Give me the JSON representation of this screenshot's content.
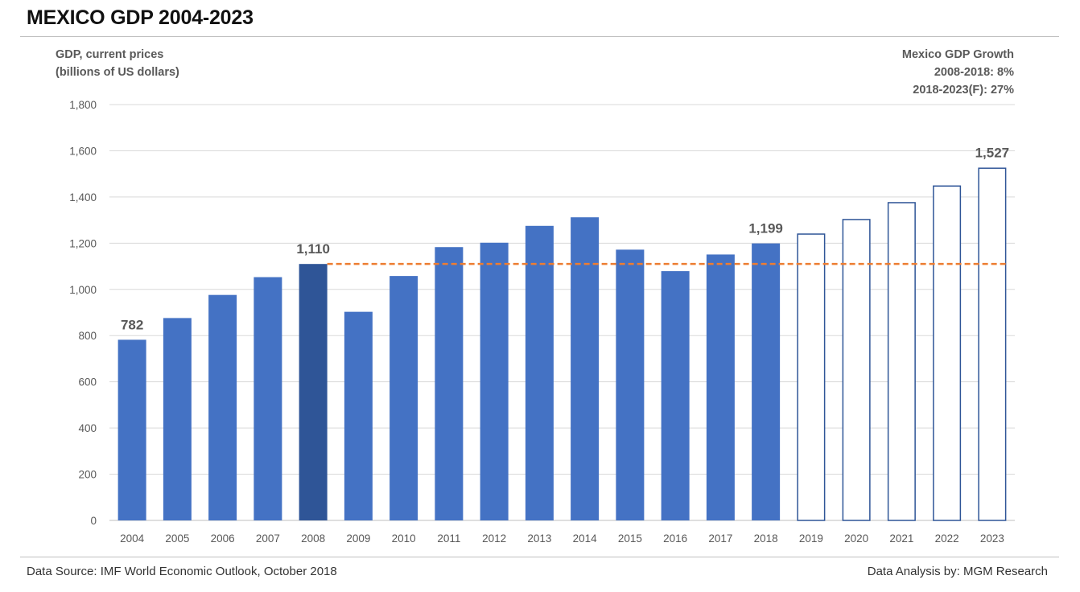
{
  "title": "MEXICO GDP 2004-2023",
  "ylabel_lines": [
    "GDP, current prices",
    "(billions of US dollars)"
  ],
  "growth_box": [
    "Mexico GDP Growth",
    "2008-2018: 8%",
    "2018-2023(F): 27%"
  ],
  "footer": {
    "source": "Data Source: IMF World Economic Outlook, October 2018",
    "analysis": "Data Analysis by: MGM Research"
  },
  "colors": {
    "bar": "#4472c4",
    "highlight_bar": "#2f5597",
    "forecast_outline": "#2f5597",
    "reference_line": "#ed7d31"
  },
  "chart_data": {
    "type": "bar",
    "categories": [
      "2004",
      "2005",
      "2006",
      "2007",
      "2008",
      "2009",
      "2010",
      "2011",
      "2012",
      "2013",
      "2014",
      "2015",
      "2016",
      "2017",
      "2018",
      "2019",
      "2020",
      "2021",
      "2022",
      "2023"
    ],
    "values": [
      782,
      876,
      976,
      1053,
      1110,
      903,
      1058,
      1183,
      1202,
      1275,
      1312,
      1172,
      1079,
      1151,
      1199,
      1242,
      1305,
      1378,
      1450,
      1527
    ],
    "forecast_from": "2019",
    "highlight": "2008",
    "reference_line": {
      "value": 1110,
      "from": "2008",
      "to": "2023",
      "style": "dashed"
    },
    "data_labels": [
      {
        "category": "2004",
        "text": "782"
      },
      {
        "category": "2008",
        "text": "1,110"
      },
      {
        "category": "2018",
        "text": "1,199"
      },
      {
        "category": "2023",
        "text": "1,527"
      }
    ],
    "ylim": [
      0,
      1800
    ],
    "yticks": [
      0,
      200,
      400,
      600,
      800,
      1000,
      1200,
      1400,
      1600,
      1800
    ],
    "ytick_labels": [
      "0",
      "200",
      "400",
      "600",
      "800",
      "1,000",
      "1,200",
      "1,400",
      "1,600",
      "1,800"
    ],
    "grid": true,
    "legend": "none"
  }
}
